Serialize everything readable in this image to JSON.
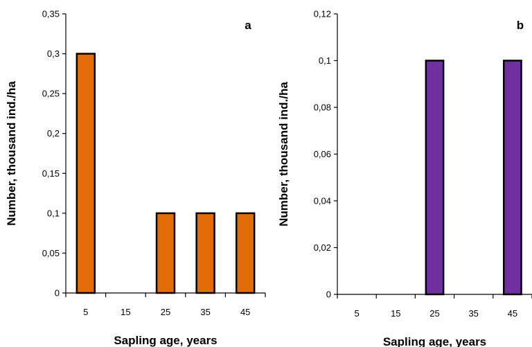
{
  "chart_data": [
    {
      "type": "bar",
      "panel_label": "a",
      "categories": [
        "5",
        "15",
        "25",
        "35",
        "45"
      ],
      "values": [
        0.3,
        0,
        0.1,
        0.1,
        0.1
      ],
      "xlabel": "Sapling age, years",
      "ylabel": "Number, thousand ind./ha",
      "ylim": [
        0,
        0.35
      ],
      "yticks": [
        0,
        0.05,
        0.1,
        0.15,
        0.2,
        0.25,
        0.3,
        0.35
      ],
      "ytick_labels": [
        "0",
        "0,05",
        "0,1",
        "0,15",
        "0,2",
        "0,25",
        "0,3",
        "0,35"
      ],
      "bar_color": "#E36C09",
      "grid": false
    },
    {
      "type": "bar",
      "panel_label": "b",
      "categories": [
        "5",
        "15",
        "25",
        "35",
        "45"
      ],
      "values": [
        0,
        0,
        0.1,
        0,
        0.1
      ],
      "xlabel": "Sapling age, years",
      "ylabel": "Number, thousand ind./ha",
      "ylim": [
        0,
        0.12
      ],
      "yticks": [
        0,
        0.02,
        0.04,
        0.06,
        0.08,
        0.1,
        0.12
      ],
      "ytick_labels": [
        "0",
        "0,02",
        "0,04",
        "0,06",
        "0,08",
        "0,1",
        "0,12"
      ],
      "bar_color": "#7030A0",
      "grid": false
    }
  ]
}
